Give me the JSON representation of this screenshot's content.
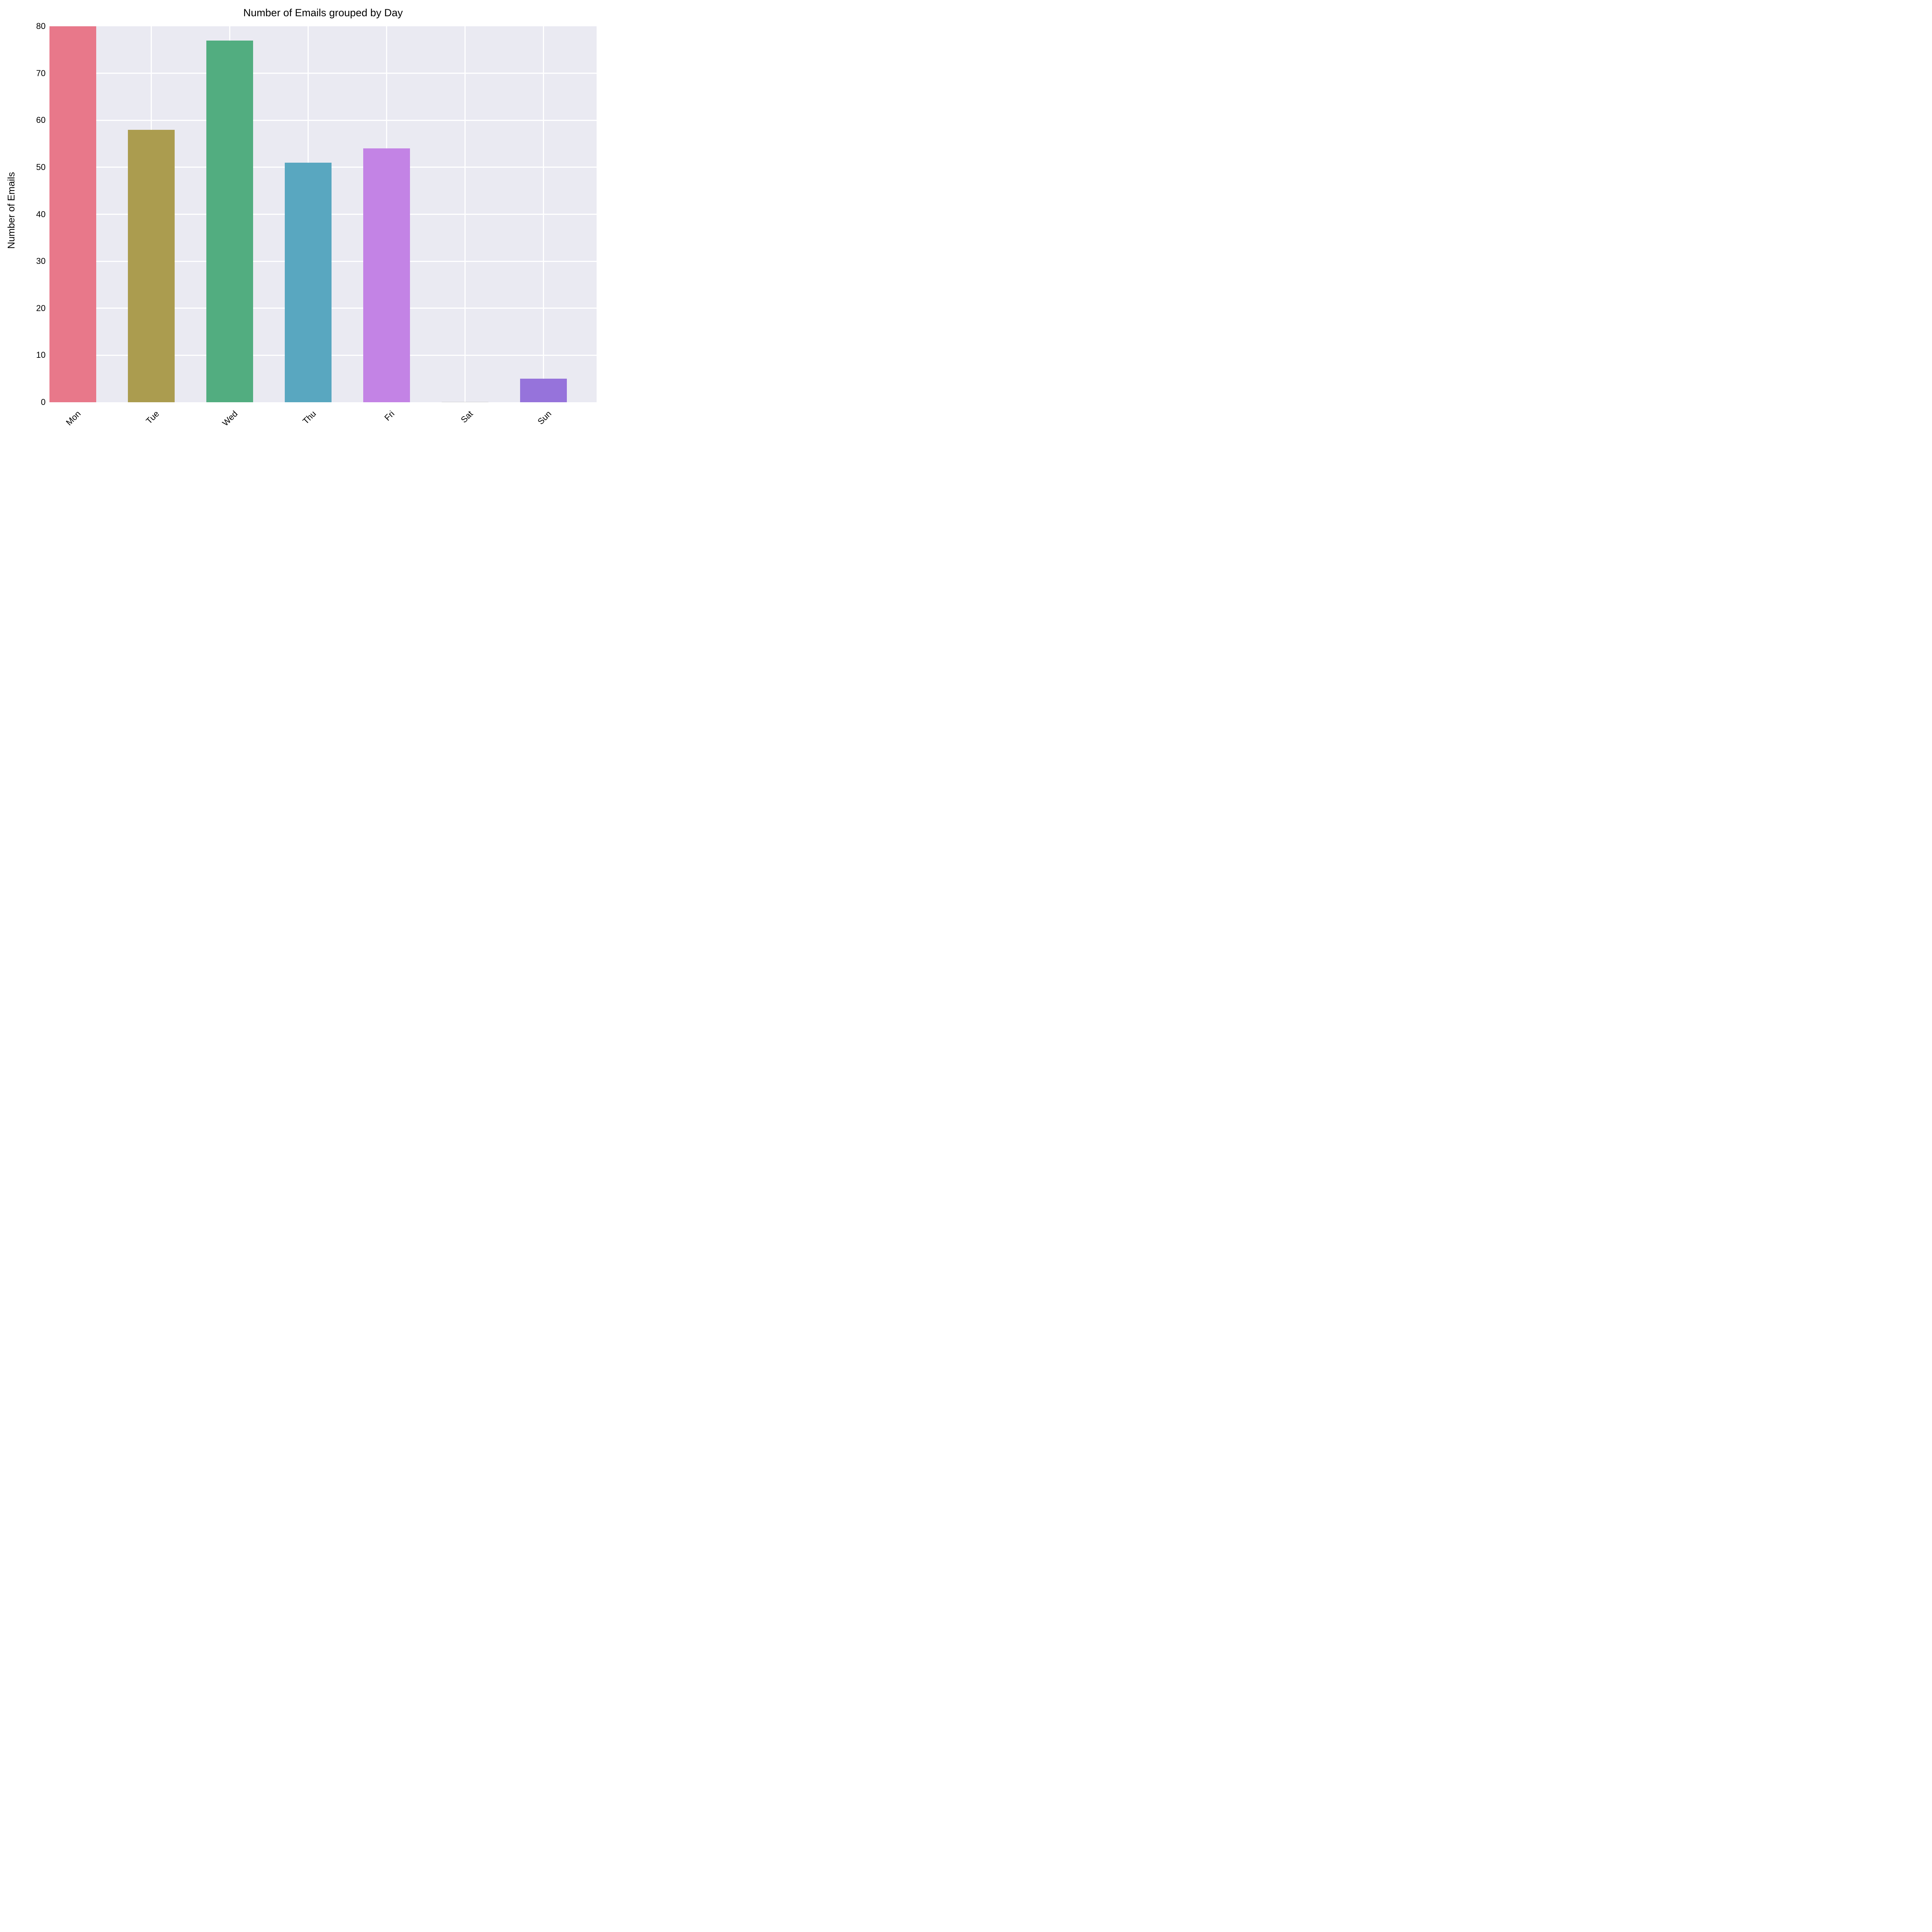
{
  "chart_data": {
    "type": "bar",
    "title": "Number of Emails grouped by Day",
    "xlabel": "",
    "ylabel": "Number of Emails",
    "categories": [
      "Mon",
      "Tue",
      "Wed",
      "Thu",
      "Fri",
      "Sat",
      "Sun"
    ],
    "values": [
      80,
      58,
      77,
      51,
      54,
      0,
      5
    ],
    "colors": [
      "#e8788a",
      "#ab9c4f",
      "#52ad80",
      "#59a7c0",
      "#c383e5",
      "#d0d0d0",
      "#9673db"
    ],
    "ylim": [
      0,
      80
    ],
    "yticks": [
      0,
      10,
      20,
      30,
      40,
      50,
      60,
      70,
      80
    ],
    "grid": true,
    "background": "#eaeaf2",
    "legend": null
  }
}
